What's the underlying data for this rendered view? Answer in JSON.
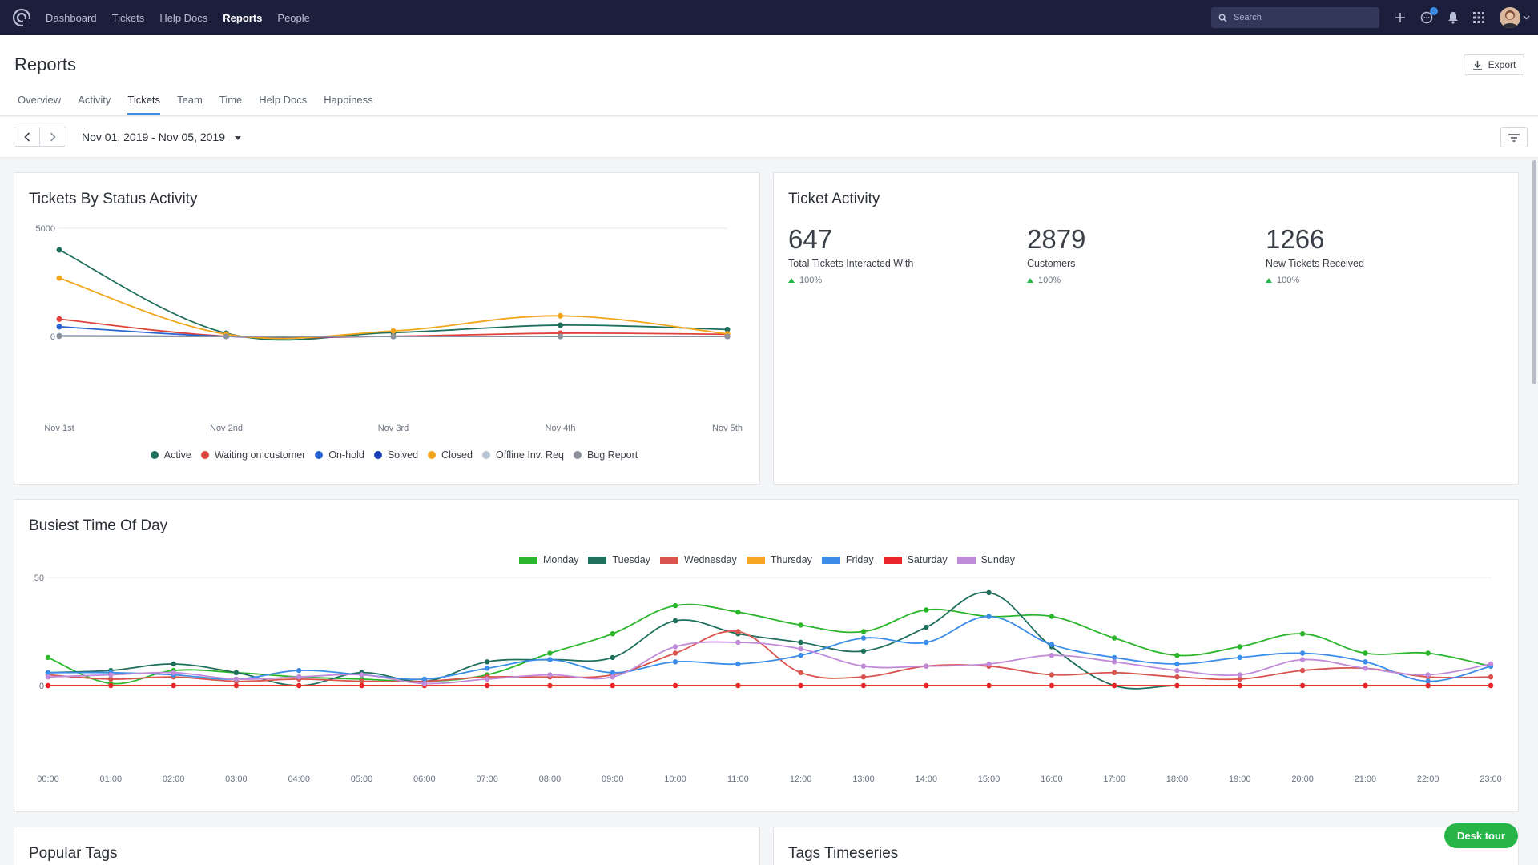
{
  "nav": {
    "links": [
      "Dashboard",
      "Tickets",
      "Help Docs",
      "Reports",
      "People"
    ],
    "active": "Reports",
    "search_placeholder": "Search"
  },
  "page": {
    "title": "Reports",
    "export_label": "Export",
    "tabs": [
      "Overview",
      "Activity",
      "Tickets",
      "Team",
      "Time",
      "Help Docs",
      "Happiness"
    ],
    "active_tab": "Tickets",
    "date_range": "Nov 01, 2019 - Nov 05, 2019"
  },
  "status_card": {
    "title": "Tickets By Status Activity"
  },
  "activity_card": {
    "title": "Ticket Activity",
    "stats": [
      {
        "value": "647",
        "label": "Total Tickets Interacted With",
        "change": "100%"
      },
      {
        "value": "2879",
        "label": "Customers",
        "change": "100%"
      },
      {
        "value": "1266",
        "label": "New Tickets Received",
        "change": "100%"
      }
    ]
  },
  "busiest_card": {
    "title": "Busiest Time Of Day"
  },
  "bottom_cards": {
    "left_title": "Popular Tags",
    "right_title": "Tags Timeseries"
  },
  "desk_tour_label": "Desk tour",
  "chart_data": [
    {
      "type": "line",
      "title": "Tickets By Status Activity",
      "x": [
        "Nov 1st",
        "Nov 2nd",
        "Nov 3rd",
        "Nov 4th",
        "Nov 5th"
      ],
      "yticks": [
        0,
        5000
      ],
      "legend_position": "bottom",
      "series": [
        {
          "name": "Active",
          "color": "#1e6f5c",
          "values": [
            4000,
            150,
            180,
            520,
            320
          ]
        },
        {
          "name": "Waiting on customer",
          "color": "#e0413a",
          "values": [
            800,
            10,
            10,
            150,
            100
          ]
        },
        {
          "name": "On-hold",
          "color": "#2a63d4",
          "values": [
            450,
            0,
            0,
            0,
            0
          ]
        },
        {
          "name": "Solved",
          "color": "#1d3fbf",
          "values": [
            30,
            0,
            0,
            0,
            0
          ]
        },
        {
          "name": "Closed",
          "color": "#f2a51a",
          "values": [
            2700,
            100,
            250,
            950,
            120
          ]
        },
        {
          "name": "Offline Inv. Req",
          "color": "#b9c3d6",
          "values": [
            20,
            0,
            0,
            0,
            0
          ]
        },
        {
          "name": "Bug Report",
          "color": "#8a8f98",
          "values": [
            10,
            0,
            0,
            0,
            0
          ]
        }
      ]
    },
    {
      "type": "line",
      "title": "Busiest Time Of Day",
      "x": [
        "00:00",
        "01:00",
        "02:00",
        "03:00",
        "04:00",
        "05:00",
        "06:00",
        "07:00",
        "08:00",
        "09:00",
        "10:00",
        "11:00",
        "12:00",
        "13:00",
        "14:00",
        "15:00",
        "16:00",
        "17:00",
        "18:00",
        "19:00",
        "20:00",
        "21:00",
        "22:00",
        "23:00"
      ],
      "yticks": [
        0,
        50
      ],
      "legend_position": "top",
      "series": [
        {
          "name": "Monday",
          "color": "#2ab52a",
          "values": [
            13,
            1,
            7,
            6,
            4,
            3,
            2,
            5,
            15,
            24,
            37,
            34,
            28,
            25,
            35,
            32,
            32,
            22,
            14,
            18,
            24,
            15,
            15,
            9
          ]
        },
        {
          "name": "Tuesday",
          "color": "#1e6f5c",
          "values": [
            6,
            7,
            10,
            6,
            0,
            6,
            2,
            11,
            12,
            13,
            30,
            24,
            20,
            16,
            27,
            43,
            18,
            0,
            0,
            0,
            0,
            0,
            0,
            0
          ]
        },
        {
          "name": "Wednesday",
          "color": "#d9534f",
          "values": [
            5,
            3,
            4,
            2,
            3,
            2,
            2,
            4,
            4,
            5,
            15,
            25,
            6,
            4,
            9,
            9,
            5,
            6,
            4,
            3,
            7,
            8,
            4,
            4
          ]
        },
        {
          "name": "Thursday",
          "color": "#f5a623",
          "values": [
            0,
            0,
            0,
            0,
            0,
            0,
            0,
            0,
            0,
            0,
            0,
            0,
            0,
            0,
            0,
            0,
            0,
            0,
            0,
            0,
            0,
            0,
            0,
            0
          ]
        },
        {
          "name": "Friday",
          "color": "#3b8de8",
          "values": [
            6,
            6,
            5,
            3,
            7,
            5,
            3,
            8,
            12,
            6,
            11,
            10,
            14,
            22,
            20,
            32,
            19,
            13,
            10,
            13,
            15,
            11,
            2,
            9
          ]
        },
        {
          "name": "Saturday",
          "color": "#e8262b",
          "values": [
            0,
            0,
            0,
            0,
            0,
            0,
            0,
            0,
            0,
            0,
            0,
            0,
            0,
            0,
            0,
            0,
            0,
            0,
            0,
            0,
            0,
            0,
            0,
            0
          ]
        },
        {
          "name": "Sunday",
          "color": "#c08bd8",
          "values": [
            4,
            5,
            6,
            3,
            4,
            5,
            1,
            3,
            5,
            4,
            18,
            20,
            17,
            9,
            9,
            10,
            14,
            11,
            7,
            5,
            12,
            8,
            5,
            10
          ]
        }
      ]
    }
  ]
}
